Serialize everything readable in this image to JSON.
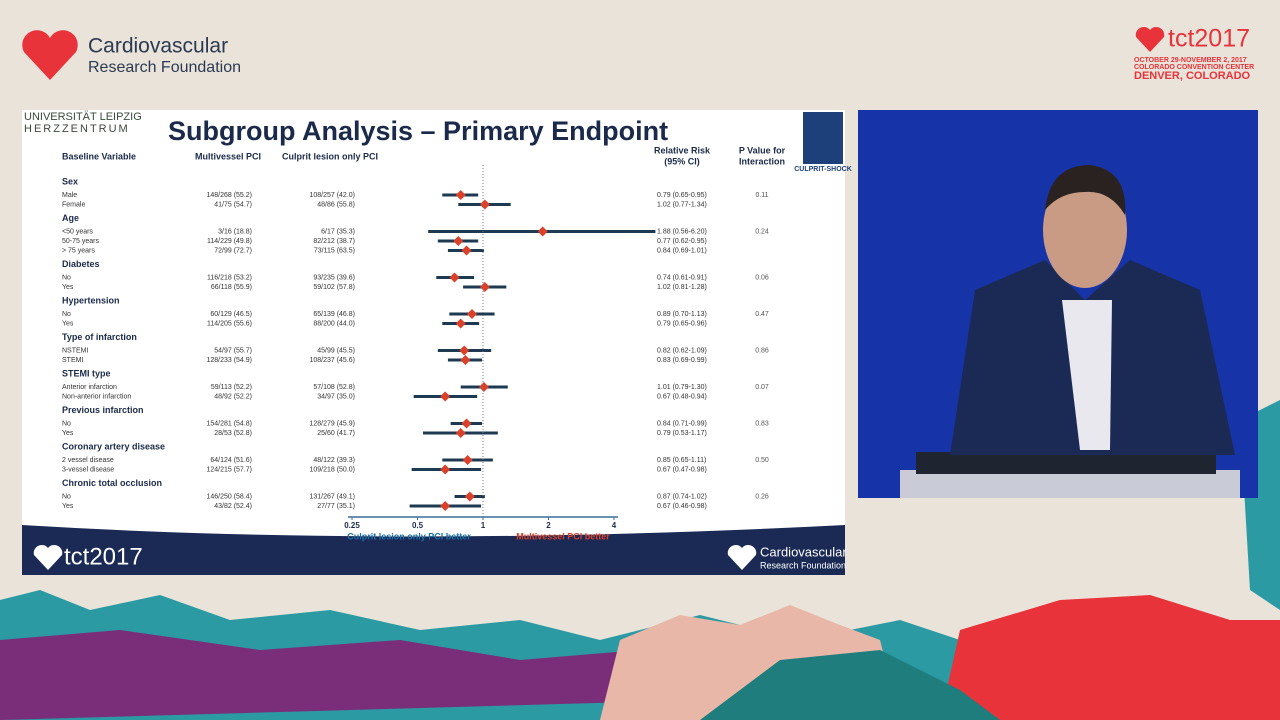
{
  "event": {
    "org_name_1": "Cardiovascular",
    "org_name_2": "Research Foundation",
    "brand": "tct2017",
    "dates": "OCTOBER 29-NOVEMBER 2, 2017",
    "venue": "COLORADO CONVENTION CENTER",
    "city": "DENVER, COLORADO"
  },
  "slide": {
    "logo_line_1": "UNIVERSITÄT LEIPZIG",
    "logo_line_2": "HERZZENTRUM",
    "trial_logo": "CULPRIT-SHOCK",
    "footer_brand": "tct2017",
    "footer_org_1": "Cardiovascular",
    "footer_org_2": "Research Foundation"
  },
  "chart_data": {
    "type": "forest",
    "title": "Subgroup Analysis – Primary Endpoint",
    "headers": {
      "variable": "Baseline Variable",
      "mv": "Multivessel PCI",
      "cl": "Culprit lesion only PCI",
      "rr_1": "Relative Risk",
      "rr_2": "(95% CI)",
      "p_1": "P Value for",
      "p_2": "Interaction"
    },
    "groups": [
      {
        "name": "Sex",
        "p": "0.11",
        "rows": [
          {
            "label": "Male",
            "mv": "148/268 (55.2)",
            "cl": "108/257 (42.0)",
            "rr": 0.79,
            "lo": 0.65,
            "hi": 0.95,
            "rr_label": "0.79 (0.65-0.95)"
          },
          {
            "label": "Female",
            "mv": "41/75 (54.7)",
            "cl": "48/86 (55.8)",
            "rr": 1.02,
            "lo": 0.77,
            "hi": 1.34,
            "rr_label": "1.02 (0.77-1.34)"
          }
        ]
      },
      {
        "name": "Age",
        "p": "0.24",
        "rows": [
          {
            "label": "<50 years",
            "mv": "3/16 (18.8)",
            "cl": "6/17 (35.3)",
            "rr": 1.88,
            "lo": 0.56,
            "hi": 6.2,
            "rr_label": "1.88 (0.56-6.20)"
          },
          {
            "label": "50-75 years",
            "mv": "114/229 (49.8)",
            "cl": "82/212 (38.7)",
            "rr": 0.77,
            "lo": 0.62,
            "hi": 0.95,
            "rr_label": "0.77 (0.62-0.95)"
          },
          {
            "label": "> 75 years",
            "mv": "72/99 (72.7)",
            "cl": "73/115 (63.5)",
            "rr": 0.84,
            "lo": 0.69,
            "hi": 1.01,
            "rr_label": "0.84 (0.69-1.01)"
          }
        ]
      },
      {
        "name": "Diabetes",
        "p": "0.06",
        "rows": [
          {
            "label": "No",
            "mv": "116/218 (53.2)",
            "cl": "93/235 (39.6)",
            "rr": 0.74,
            "lo": 0.61,
            "hi": 0.91,
            "rr_label": "0.74 (0.61-0.91)"
          },
          {
            "label": "Yes",
            "mv": "66/118 (55.9)",
            "cl": "59/102 (57.8)",
            "rr": 1.02,
            "lo": 0.81,
            "hi": 1.28,
            "rr_label": "1.02 (0.81-1.28)"
          }
        ]
      },
      {
        "name": "Hypertension",
        "p": "0.47",
        "rows": [
          {
            "label": "No",
            "mv": "60/129 (46.5)",
            "cl": "65/139 (46.8)",
            "rr": 0.89,
            "lo": 0.7,
            "hi": 1.13,
            "rr_label": "0.89 (0.70-1.13)"
          },
          {
            "label": "Yes",
            "mv": "114/205 (55.6)",
            "cl": "88/200 (44.0)",
            "rr": 0.79,
            "lo": 0.65,
            "hi": 0.96,
            "rr_label": "0.79 (0.65-0.96)"
          }
        ]
      },
      {
        "name": "Type of infarction",
        "p": "0.86",
        "rows": [
          {
            "label": "NSTEMI",
            "mv": "54/97 (55.7)",
            "cl": "45/99 (45.5)",
            "rr": 0.82,
            "lo": 0.62,
            "hi": 1.09,
            "rr_label": "0.82 (0.62-1.09)"
          },
          {
            "label": "STEMI",
            "mv": "128/233 (54.9)",
            "cl": "108/237 (45.6)",
            "rr": 0.83,
            "lo": 0.69,
            "hi": 0.99,
            "rr_label": "0.83 (0.69-0.99)"
          }
        ]
      },
      {
        "name": "STEMI type",
        "p": "0.07",
        "rows": [
          {
            "label": "Anterior infarction",
            "mv": "59/113 (52.2)",
            "cl": "57/108 (52.8)",
            "rr": 1.01,
            "lo": 0.79,
            "hi": 1.3,
            "rr_label": "1.01 (0.79-1.30)"
          },
          {
            "label": "Non-anterior infarction",
            "mv": "48/92 (52.2)",
            "cl": "34/97 (35.0)",
            "rr": 0.67,
            "lo": 0.48,
            "hi": 0.94,
            "rr_label": "0.67 (0.48-0.94)"
          }
        ]
      },
      {
        "name": "Previous infarction",
        "p": "0.83",
        "rows": [
          {
            "label": "No",
            "mv": "154/281 (54.8)",
            "cl": "128/279 (45.9)",
            "rr": 0.84,
            "lo": 0.71,
            "hi": 0.99,
            "rr_label": "0.84 (0.71-0.99)"
          },
          {
            "label": "Yes",
            "mv": "28/53 (52.8)",
            "cl": "25/60 (41.7)",
            "rr": 0.79,
            "lo": 0.53,
            "hi": 1.17,
            "rr_label": "0.79 (0.53-1.17)"
          }
        ]
      },
      {
        "name": "Coronary artery disease",
        "p": "0.50",
        "rows": [
          {
            "label": "2 vessel disease",
            "mv": "64/124 (51.6)",
            "cl": "48/122 (39.3)",
            "rr": 0.85,
            "lo": 0.65,
            "hi": 1.11,
            "rr_label": "0.85 (0.65-1.11)"
          },
          {
            "label": "3-vessel disease",
            "mv": "124/215 (57.7)",
            "cl": "109/218 (50.0)",
            "rr": 0.67,
            "lo": 0.47,
            "hi": 0.98,
            "rr_label": "0.67 (0.47-0.98)"
          }
        ]
      },
      {
        "name": "Chronic total occlusion",
        "p": "0.26",
        "rows": [
          {
            "label": "No",
            "mv": "146/250 (58.4)",
            "cl": "131/267 (49.1)",
            "rr": 0.87,
            "lo": 0.74,
            "hi": 1.02,
            "rr_label": "0.87 (0.74-1.02)"
          },
          {
            "label": "Yes",
            "mv": "43/82 (52.4)",
            "cl": "27/77 (35.1)",
            "rr": 0.67,
            "lo": 0.46,
            "hi": 0.98,
            "rr_label": "0.67 (0.46-0.98)"
          }
        ]
      }
    ],
    "log_x": true,
    "xlim": [
      0.25,
      4
    ],
    "xticks": [
      0.25,
      0.5,
      1,
      2,
      4
    ],
    "reference": 1,
    "x_label_left": "Culprit lesion only PCI better",
    "x_label_right": "Multivessel PCI better",
    "point_color": "#d9412b",
    "ci_color": "#1e3a52"
  }
}
